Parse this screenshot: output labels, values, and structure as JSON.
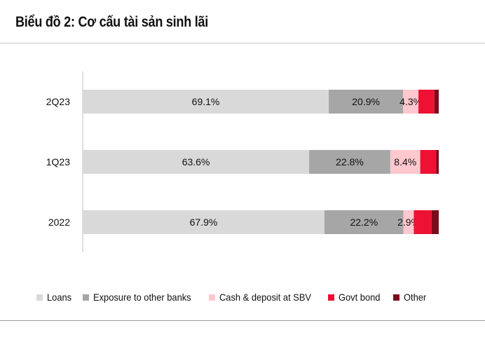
{
  "header": {
    "title": "Biểu đồ 2: Cơ cấu tài sản sinh lãi"
  },
  "chart_data": {
    "type": "bar",
    "orientation": "horizontal",
    "stacked": true,
    "categories": [
      "2Q23",
      "1Q23",
      "2022"
    ],
    "xlim": [
      0,
      100
    ],
    "grid": false,
    "legend_position": "bottom",
    "series": [
      {
        "name": "Loans",
        "color": "#d9d9d9",
        "values": [
          69.1,
          63.6,
          67.9
        ],
        "labels": [
          "69.1%",
          "63.6%",
          "67.9%"
        ]
      },
      {
        "name": "Exposure to other banks",
        "color": "#a6a6a6",
        "values": [
          20.9,
          22.8,
          22.2
        ],
        "labels": [
          "20.9%",
          "22.8%",
          "22.2%"
        ]
      },
      {
        "name": "Cash & deposit at SBV",
        "color": "#ffc7ce",
        "values": [
          4.3,
          8.4,
          2.9
        ],
        "labels": [
          "4.3%",
          "8.4%",
          "2.9%"
        ]
      },
      {
        "name": "Govt bond",
        "color": "#ee1133",
        "values": [
          4.5,
          4.5,
          5.0
        ],
        "labels": [
          "",
          "",
          ""
        ]
      },
      {
        "name": "Other",
        "color": "#7a0c1e",
        "values": [
          1.2,
          0.7,
          2.0
        ],
        "labels": [
          "",
          "",
          ""
        ]
      }
    ]
  }
}
